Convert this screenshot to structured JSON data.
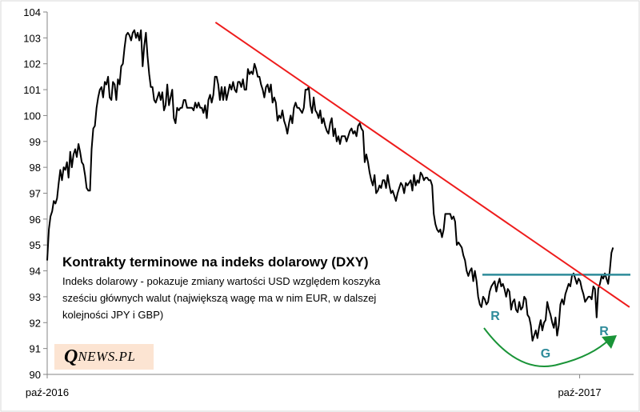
{
  "chart_data": {
    "type": "line",
    "title": "Kontrakty terminowe na indeks dolarowy (DXY)",
    "subtitle_lines": [
      "Indeks dolarowy - pokazuje zmiany wartości USD względem koszyka",
      "sześciu głównych walut (największą wagę ma w nim EUR, w dalszej",
      "kolejności JPY i GBP)"
    ],
    "ylim": [
      90,
      104
    ],
    "yticks": [
      "90",
      "91",
      "92",
      "93",
      "94",
      "95",
      "96",
      "97",
      "98",
      "99",
      "100",
      "101",
      "102",
      "103",
      "104"
    ],
    "xticks": [
      "paź-2016",
      "paź-2017"
    ],
    "series": [
      {
        "color": "#000000",
        "values": [
          94.4,
          95.6,
          96.1,
          96.3,
          96.7,
          96.6,
          96.8,
          97.4,
          97.9,
          97.5,
          98.0,
          97.9,
          98.2,
          97.6,
          98.6,
          98.0,
          98.5,
          98.7,
          98.4,
          98.9,
          98.6,
          98.2,
          98.1,
          97.7,
          97.2,
          97.1,
          97.1,
          98.7,
          99.5,
          99.6,
          100.3,
          100.7,
          101.0,
          101.1,
          100.7,
          101.3,
          101.2,
          101.5,
          100.7,
          100.6,
          101.3,
          101.2,
          100.6,
          101.4,
          101.2,
          101.9,
          102.0,
          102.6,
          103.1,
          103.2,
          103.1,
          102.9,
          103.2,
          103.3,
          103.0,
          103.2,
          102.9,
          103.3,
          101.9,
          102.7,
          103.2,
          102.3,
          101.6,
          101.1,
          101.1,
          100.6,
          100.5,
          100.7,
          100.9,
          100.6,
          100.9,
          100.2,
          100.4,
          101.2,
          100.4,
          100.7,
          101.0,
          99.9,
          99.7,
          100.3,
          100.2,
          100.3,
          100.3,
          100.6,
          100.6,
          100.3,
          100.3,
          100.3,
          100.3,
          100.2,
          100.5,
          100.3,
          100.5,
          100.3,
          100.3,
          100.1,
          100.4,
          99.9,
          100.6,
          100.8,
          100.5,
          100.8,
          101.5,
          101.5,
          101.2,
          100.6,
          101.1,
          100.6,
          101.1,
          100.6,
          100.9,
          101.2,
          101.0,
          101.3,
          101.0,
          100.9,
          101.3,
          101.3,
          101.1,
          101.4,
          101.0,
          101.0,
          101.8,
          101.6,
          101.7,
          101.6,
          102.0,
          101.8,
          101.5,
          101.5,
          101.2,
          101.0,
          100.7,
          101.1,
          101.2,
          100.9,
          101.2,
          100.5,
          100.7,
          100.5,
          99.8,
          100.0,
          99.9,
          100.2,
          99.8,
          99.6,
          99.3,
          99.7,
          100.0,
          99.7,
          100.3,
          100.5,
          100.3,
          100.3,
          100.2,
          100.1,
          100.3,
          101.0,
          101.0,
          101.1,
          100.4,
          100.1,
          100.7,
          100.2,
          100.1,
          99.9,
          100.2,
          99.7,
          99.9,
          99.6,
          99.4,
          99.3,
          99.7,
          99.9,
          99.2,
          99.5,
          99.0,
          99.2,
          98.9,
          99.2,
          99.2,
          99.2,
          99.0,
          99.2,
          99.4,
          99.5,
          99.3,
          99.4,
          99.2,
          99.6,
          99.7,
          99.5,
          99.4,
          98.2,
          98.5,
          98.2,
          97.8,
          97.5,
          97.3,
          97.7,
          97.0,
          97.1,
          97.3,
          97.2,
          97.5,
          97.5,
          97.2,
          97.7,
          97.3,
          97.0,
          97.1,
          96.9,
          96.7,
          97.0,
          97.2,
          97.4,
          97.3,
          97.0,
          97.4,
          97.3,
          97.4,
          97.5,
          97.1,
          97.7,
          97.3,
          97.5,
          97.4,
          97.8,
          97.7,
          97.5,
          97.6,
          97.6,
          97.5,
          97.5,
          97.3,
          96.2,
          95.8,
          95.6,
          95.5,
          95.6,
          95.3,
          95.6,
          96.2,
          96.2,
          96.2,
          96.2,
          96.0,
          96.1,
          95.9,
          95.0,
          95.1,
          95.0,
          94.9,
          94.6,
          94.4,
          94.0,
          93.8,
          94.0,
          94.1,
          93.6,
          94.0,
          93.6,
          93.0,
          92.7,
          92.6,
          93.0,
          92.9,
          92.7,
          92.8,
          93.2,
          93.4,
          93.5,
          93.6,
          93.2,
          93.5,
          93.7,
          93.4,
          93.5,
          93.3,
          93.0,
          93.3,
          93.2,
          92.5,
          92.8,
          92.9,
          92.5,
          92.4,
          92.8,
          92.5,
          92.6,
          93.0,
          92.9,
          92.3,
          92.2,
          91.9,
          91.3,
          91.5,
          91.7,
          91.4,
          91.8,
          92.1,
          91.7,
          92.0,
          92.1,
          92.8,
          92.5,
          92.3,
          92.0,
          91.8,
          92.2,
          91.5,
          91.9,
          92.7,
          92.9,
          92.7,
          93.1,
          93.3,
          93.5,
          93.4,
          93.8,
          93.9,
          93.7,
          93.5,
          93.7,
          93.6,
          93.3,
          93.1,
          92.8,
          92.9,
          93.0,
          93.0,
          92.9,
          93.4,
          93.3,
          92.2,
          93.3,
          93.5,
          93.8,
          93.7,
          93.9,
          93.7,
          93.5,
          94.0,
          94.7,
          94.9
        ]
      }
    ],
    "resistance_level": 93.85,
    "trendline": {
      "start": {
        "x": 0.287,
        "y": 103.6
      },
      "end": {
        "x": 0.993,
        "y": 92.6
      }
    },
    "pattern_labels": [
      "R",
      "G",
      "R"
    ],
    "colors": {
      "line": "#000000",
      "trend": "#ee1c1c",
      "resistance": "#2e8b9a",
      "pattern_text": "#2e8b9a",
      "arc": "#1a9438"
    },
    "grid": false,
    "logo": {
      "q": "Q",
      "rest": "NEWS.PL"
    }
  }
}
